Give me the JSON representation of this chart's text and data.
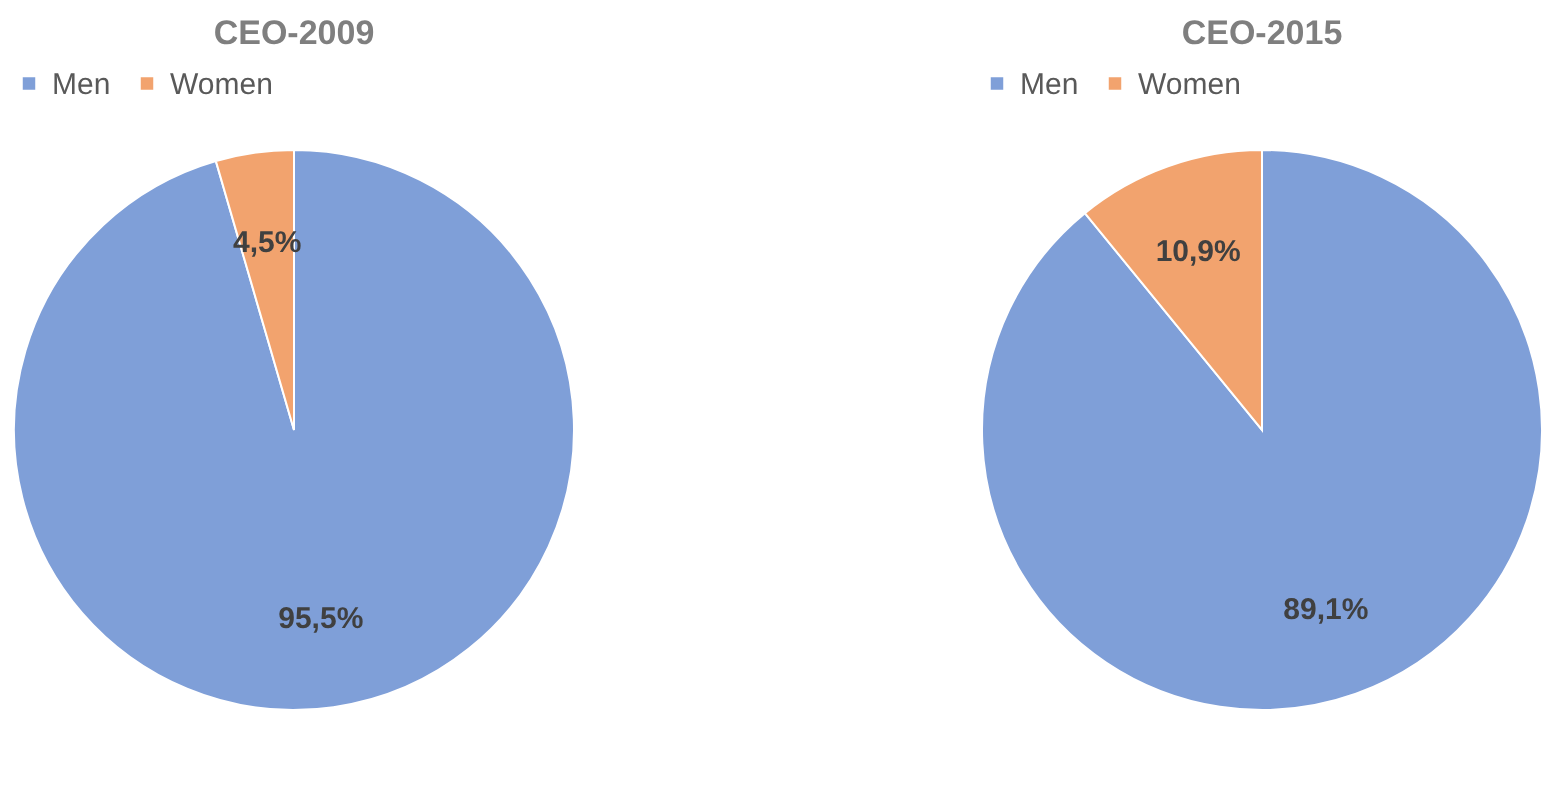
{
  "chart_data": [
    {
      "type": "pie",
      "title": "CEO-2009",
      "categories": [
        "Men",
        "Women"
      ],
      "values": [
        95.5,
        4.5
      ],
      "colors": [
        "#7f9fd8",
        "#f2a36e"
      ],
      "value_labels": [
        "95,5%",
        "4,5%"
      ],
      "legend": "top"
    },
    {
      "type": "pie",
      "title": "CEO-2015",
      "categories": [
        "Men",
        "Women"
      ],
      "values": [
        89.1,
        10.9
      ],
      "colors": [
        "#7f9fd8",
        "#f2a36e"
      ],
      "value_labels": [
        "89,1%",
        "10,9%"
      ],
      "legend": "top"
    }
  ]
}
